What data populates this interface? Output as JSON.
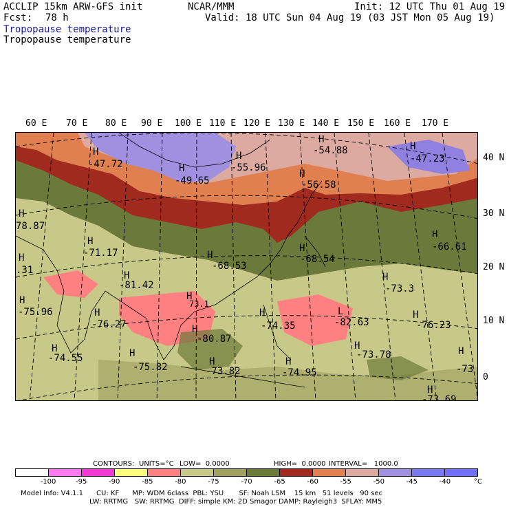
{
  "header": {
    "model": "ACCLIP 15km ARW-GFS init",
    "forecast_label": "Fcst:",
    "forecast_value": "78 h",
    "center": "NCAR/MMM",
    "init": "Init: 12 UTC Thu 01 Aug 19",
    "valid": "Valid: 18 UTC Sun 04 Aug 19 (03 JST Mon 05 Aug 19)",
    "field_blue": "Tropopause temperature",
    "field_black": "Tropopause temperature"
  },
  "map": {
    "lon_labels": [
      "60 E",
      "70 E",
      "80 E",
      "90 E",
      "100 E",
      "110 E",
      "120 E",
      "130 E",
      "140 E",
      "150 E",
      "160 E",
      "170 E"
    ],
    "lat_labels": [
      "40 N",
      "30 N",
      "20 N",
      "10 N",
      "0"
    ],
    "highs": [
      {
        "mark": "H",
        "value": "-47.72"
      },
      {
        "mark": "H",
        "value": "-49.65"
      },
      {
        "mark": "H",
        "value": "-55.96"
      },
      {
        "mark": "H",
        "value": "-54.88"
      },
      {
        "mark": "H",
        "value": "-56.58"
      },
      {
        "mark": "H",
        "value": "-47.23"
      },
      {
        "mark": "H",
        "value": "-71.17"
      },
      {
        "mark": "H",
        "value": "-68.53"
      },
      {
        "mark": "H",
        "value": "-68.54"
      },
      {
        "mark": "H",
        "value": "-66.61"
      },
      {
        "mark": "H",
        "value": "-81.42"
      },
      {
        "mark": "H",
        "value": "-73.3"
      },
      {
        "mark": "H",
        "value": "-75.96"
      },
      {
        "mark": "H",
        "value": "-76.27"
      },
      {
        "mark": "H",
        "value": "-74.35"
      },
      {
        "mark": "L",
        "value": "-82.63"
      },
      {
        "mark": "H",
        "value": "-76.23"
      },
      {
        "mark": "H",
        "value": "-80.87"
      },
      {
        "mark": "H",
        "value": "-74.55"
      },
      {
        "mark": "H",
        "value": "-75.82"
      },
      {
        "mark": "H",
        "value": "-73.78"
      },
      {
        "mark": "H",
        "value": "-73.82"
      },
      {
        "mark": "H",
        "value": "-74.95"
      },
      {
        "mark": "H",
        "value": "-73.69"
      },
      {
        "mark": "H",
        "value": "-73"
      },
      {
        "mark": "H",
        "value": "78.87"
      },
      {
        "mark": "H",
        "value": ".31"
      },
      {
        "mark": "H",
        "value": "73.1"
      }
    ]
  },
  "footer": {
    "contours_label": "CONTOURS:",
    "units": "UNITS=°C",
    "low": "LOW=  0.0000",
    "high": "HIGH=  0.0000",
    "interval": "INTERVAL=   1000.0",
    "legend_colors": [
      "#ffffff",
      "#ff7af0",
      "#f03ad2",
      "#ffff80",
      "#ff8080",
      "#c8c888",
      "#a0a060",
      "#6b7a3a",
      "#a02a1e",
      "#e08050",
      "#dcaaa0",
      "#a090e0",
      "#7878f0",
      "#7070f8"
    ],
    "legend_ticks": [
      "-100",
      "-95",
      "-90",
      "-85",
      "-80",
      "-75",
      "-70",
      "-65",
      "-60",
      "-55",
      "-50",
      "-45",
      "-40",
      "°C"
    ],
    "model_info_line1": "Model Info: V4.1.1      CU: KF      MP: WDM 6class  PBL: YSU       SF: Noah LSM    15 km   51 levels   90 sec",
    "model_info_line2": "LW: RRTMG   SW: RRTMG  DIFF: simple KM: 2D Smagor DAMP: Rayleigh3  SFLAY: MM5"
  }
}
